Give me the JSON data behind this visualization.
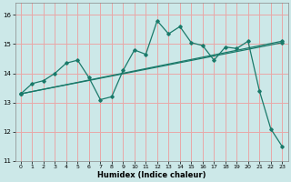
{
  "bg_color": "#cce8e8",
  "grid_color": "#e8a8a8",
  "line_color": "#1a7a6a",
  "xlabel": "Humidex (Indice chaleur)",
  "xlim": [
    -0.5,
    23.5
  ],
  "ylim": [
    11,
    16.4
  ],
  "xticks": [
    0,
    1,
    2,
    3,
    4,
    5,
    6,
    7,
    8,
    9,
    10,
    11,
    12,
    13,
    14,
    15,
    16,
    17,
    18,
    19,
    20,
    21,
    22,
    23
  ],
  "yticks": [
    11,
    12,
    13,
    14,
    15,
    16
  ],
  "series1_x": [
    0,
    1,
    2,
    3,
    4,
    5,
    6,
    7,
    8,
    9,
    10,
    11,
    12,
    13,
    14,
    15,
    16,
    17,
    18,
    19,
    20,
    21,
    22,
    23
  ],
  "series1_y": [
    13.3,
    13.65,
    13.75,
    14.0,
    14.35,
    14.45,
    13.85,
    13.1,
    13.2,
    14.1,
    14.8,
    14.65,
    15.8,
    15.35,
    15.6,
    15.05,
    14.95,
    14.45,
    14.9,
    14.85,
    15.1,
    13.4,
    12.1,
    11.5
  ],
  "series2_x": [
    0,
    23
  ],
  "series2_y": [
    13.3,
    15.05
  ],
  "series3_x": [
    0,
    23
  ],
  "series3_y": [
    13.3,
    15.1
  ],
  "lw": 0.9,
  "ms": 1.8
}
